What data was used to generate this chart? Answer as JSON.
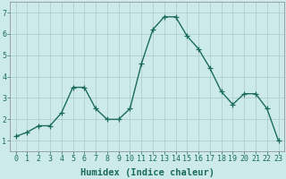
{
  "x": [
    0,
    1,
    2,
    3,
    4,
    5,
    6,
    7,
    8,
    9,
    10,
    11,
    12,
    13,
    14,
    15,
    16,
    17,
    18,
    19,
    20,
    21,
    22,
    23
  ],
  "y": [
    1.2,
    1.4,
    1.7,
    1.7,
    2.3,
    3.5,
    3.5,
    2.5,
    2.0,
    2.0,
    2.5,
    4.6,
    6.2,
    6.8,
    6.8,
    5.9,
    5.3,
    4.4,
    3.3,
    2.7,
    3.2,
    3.2,
    2.5,
    1.0
  ],
  "line_color": "#1a6b5a",
  "marker": "+",
  "markersize": 4,
  "linewidth": 1.0,
  "background_color": "#cdeaea",
  "grid_color": "#b0cece",
  "xlabel": "Humidex (Indice chaleur)",
  "xlabel_fontsize": 7.5,
  "xlim": [
    -0.5,
    23.5
  ],
  "ylim": [
    0.5,
    7.5
  ],
  "yticks": [
    1,
    2,
    3,
    4,
    5,
    6,
    7
  ],
  "xticks": [
    0,
    1,
    2,
    3,
    4,
    5,
    6,
    7,
    8,
    9,
    10,
    11,
    12,
    13,
    14,
    15,
    16,
    17,
    18,
    19,
    20,
    21,
    22,
    23
  ],
  "tick_fontsize": 6.0,
  "tick_color": "#1a6b5a",
  "spine_color": "#888888"
}
